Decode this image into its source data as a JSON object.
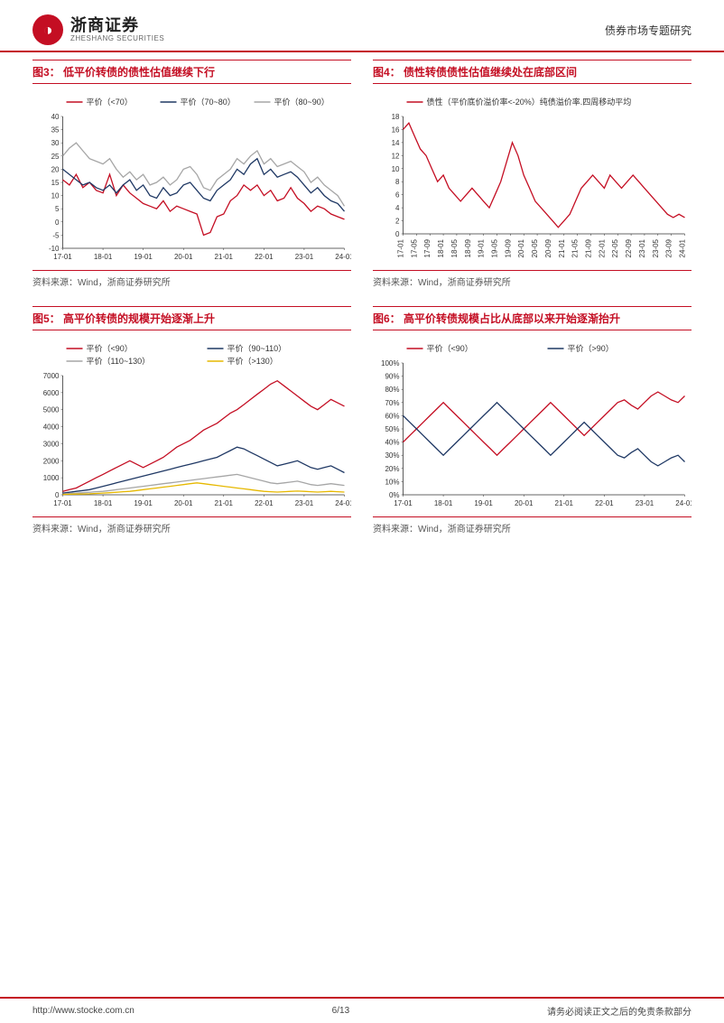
{
  "header": {
    "company_cn": "浙商证券",
    "company_en": "ZHESHANG SECURITIES",
    "right_text": "债券市场专题研究"
  },
  "footer": {
    "url": "http://www.stocke.com.cn",
    "page": "6/13",
    "disclaimer": "请务必阅读正文之后的免责条款部分"
  },
  "charts": {
    "fig3": {
      "title": "图3：  低平价转债的债性估值继续下行",
      "type": "line",
      "xticks": [
        "17-01",
        "18-01",
        "19-01",
        "20-01",
        "21-01",
        "22-01",
        "23-01",
        "24-01"
      ],
      "ylim": [
        -10,
        40
      ],
      "ytick_step": 5,
      "series": [
        {
          "name": "平价（<70）",
          "color": "#c40e23",
          "data": [
            16,
            14,
            18,
            13,
            15,
            12,
            11,
            18,
            10,
            14,
            11,
            9,
            7,
            6,
            5,
            8,
            4,
            6,
            5,
            4,
            3,
            -5,
            -4,
            2,
            3,
            8,
            10,
            14,
            12,
            14,
            10,
            12,
            8,
            9,
            13,
            9,
            7,
            4,
            6,
            5,
            3,
            2,
            1
          ]
        },
        {
          "name": "平价（70~80）",
          "color": "#1f3864",
          "data": [
            20,
            18,
            16,
            14,
            15,
            13,
            12,
            14,
            11,
            14,
            16,
            12,
            14,
            10,
            9,
            13,
            10,
            11,
            14,
            15,
            12,
            9,
            8,
            12,
            14,
            16,
            20,
            18,
            22,
            24,
            18,
            20,
            17,
            18,
            19,
            17,
            14,
            11,
            13,
            10,
            8,
            7,
            4
          ]
        },
        {
          "name": "平价（80~90）",
          "color": "#a6a6a6",
          "data": [
            25,
            28,
            30,
            27,
            24,
            23,
            22,
            24,
            20,
            17,
            19,
            16,
            18,
            14,
            15,
            17,
            14,
            16,
            20,
            21,
            18,
            13,
            12,
            16,
            18,
            20,
            24,
            22,
            25,
            27,
            22,
            24,
            21,
            22,
            23,
            21,
            19,
            15,
            17,
            14,
            12,
            10,
            6
          ]
        }
      ],
      "background_color": "#ffffff",
      "grid_color": "#d0d0d0",
      "label_fontsize": 8
    },
    "fig4": {
      "title": "图4：  债性转债债性估值继续处在底部区间",
      "type": "line",
      "xticks": [
        "17-01",
        "17-05",
        "17-09",
        "18-01",
        "18-05",
        "18-09",
        "19-01",
        "19-05",
        "19-09",
        "20-01",
        "20-05",
        "20-09",
        "21-01",
        "21-05",
        "21-09",
        "22-01",
        "22-05",
        "22-09",
        "23-01",
        "23-05",
        "23-09",
        "24-01"
      ],
      "ylim": [
        0,
        18
      ],
      "ytick_step": 2,
      "series": [
        {
          "name": "债性（平价底价溢价率<-20%）纯债溢价率.四周移动平均",
          "color": "#c40e23",
          "data": [
            16,
            17,
            15,
            13,
            12,
            10,
            8,
            9,
            7,
            6,
            5,
            6,
            7,
            6,
            5,
            4,
            6,
            8,
            11,
            14,
            12,
            9,
            7,
            5,
            4,
            3,
            2,
            1,
            2,
            3,
            5,
            7,
            8,
            9,
            8,
            7,
            9,
            8,
            7,
            8,
            9,
            8,
            7,
            6,
            5,
            4,
            3,
            2.5,
            3,
            2.5
          ]
        }
      ],
      "background_color": "#ffffff",
      "grid_color": "#d0d0d0",
      "label_fontsize": 8,
      "xtick_rotation": -90
    },
    "fig5": {
      "title": "图5：  高平价转债的规模开始逐渐上升",
      "type": "line",
      "xticks": [
        "17-01",
        "18-01",
        "19-01",
        "20-01",
        "21-01",
        "22-01",
        "23-01",
        "24-01"
      ],
      "ylim": [
        0,
        7000
      ],
      "ytick_step": 1000,
      "series": [
        {
          "name": "平价（<90）",
          "color": "#c40e23",
          "data": [
            200,
            300,
            400,
            600,
            800,
            1000,
            1200,
            1400,
            1600,
            1800,
            2000,
            1800,
            1600,
            1800,
            2000,
            2200,
            2500,
            2800,
            3000,
            3200,
            3500,
            3800,
            4000,
            4200,
            4500,
            4800,
            5000,
            5300,
            5600,
            5900,
            6200,
            6500,
            6700,
            6400,
            6100,
            5800,
            5500,
            5200,
            5000,
            5300,
            5600,
            5400,
            5200
          ]
        },
        {
          "name": "平价（90~110）",
          "color": "#1f3864",
          "data": [
            100,
            150,
            200,
            250,
            300,
            400,
            500,
            600,
            700,
            800,
            900,
            1000,
            1100,
            1200,
            1300,
            1400,
            1500,
            1600,
            1700,
            1800,
            1900,
            2000,
            2100,
            2200,
            2400,
            2600,
            2800,
            2700,
            2500,
            2300,
            2100,
            1900,
            1700,
            1800,
            1900,
            2000,
            1800,
            1600,
            1500,
            1600,
            1700,
            1500,
            1300
          ]
        },
        {
          "name": "平价（110~130）",
          "color": "#a6a6a6",
          "data": [
            50,
            80,
            100,
            120,
            150,
            180,
            200,
            250,
            300,
            350,
            400,
            450,
            500,
            550,
            600,
            650,
            700,
            750,
            800,
            850,
            900,
            950,
            1000,
            1050,
            1100,
            1150,
            1200,
            1100,
            1000,
            900,
            800,
            700,
            650,
            700,
            750,
            800,
            700,
            600,
            550,
            600,
            650,
            600,
            550
          ]
        },
        {
          "name": "平价（>130）",
          "color": "#e6b800",
          "data": [
            20,
            30,
            40,
            50,
            60,
            80,
            100,
            120,
            150,
            180,
            200,
            250,
            300,
            350,
            400,
            450,
            500,
            550,
            600,
            650,
            700,
            650,
            600,
            550,
            500,
            450,
            400,
            350,
            300,
            250,
            200,
            180,
            160,
            180,
            200,
            220,
            200,
            180,
            160,
            180,
            200,
            180,
            160
          ]
        }
      ],
      "background_color": "#ffffff",
      "grid_color": "#d0d0d0",
      "label_fontsize": 8
    },
    "fig6": {
      "title": "图6：  高平价转债规模占比从底部以来开始逐渐抬升",
      "type": "line",
      "xticks": [
        "17-01",
        "18-01",
        "19-01",
        "20-01",
        "21-01",
        "22-01",
        "23-01",
        "24-01"
      ],
      "ylim": [
        0,
        100
      ],
      "ytick_step": 10,
      "y_suffix": "%",
      "series": [
        {
          "name": "平价（<90）",
          "color": "#c40e23",
          "data": [
            40,
            45,
            50,
            55,
            60,
            65,
            70,
            65,
            60,
            55,
            50,
            45,
            40,
            35,
            30,
            35,
            40,
            45,
            50,
            55,
            60,
            65,
            70,
            65,
            60,
            55,
            50,
            45,
            50,
            55,
            60,
            65,
            70,
            72,
            68,
            65,
            70,
            75,
            78,
            75,
            72,
            70,
            75
          ]
        },
        {
          "name": "平价（>90）",
          "color": "#1f3864",
          "data": [
            60,
            55,
            50,
            45,
            40,
            35,
            30,
            35,
            40,
            45,
            50,
            55,
            60,
            65,
            70,
            65,
            60,
            55,
            50,
            45,
            40,
            35,
            30,
            35,
            40,
            45,
            50,
            55,
            50,
            45,
            40,
            35,
            30,
            28,
            32,
            35,
            30,
            25,
            22,
            25,
            28,
            30,
            25
          ]
        }
      ],
      "background_color": "#ffffff",
      "grid_color": "#d0d0d0",
      "label_fontsize": 8
    }
  },
  "source_text": "资料来源：Wind，浙商证券研究所"
}
